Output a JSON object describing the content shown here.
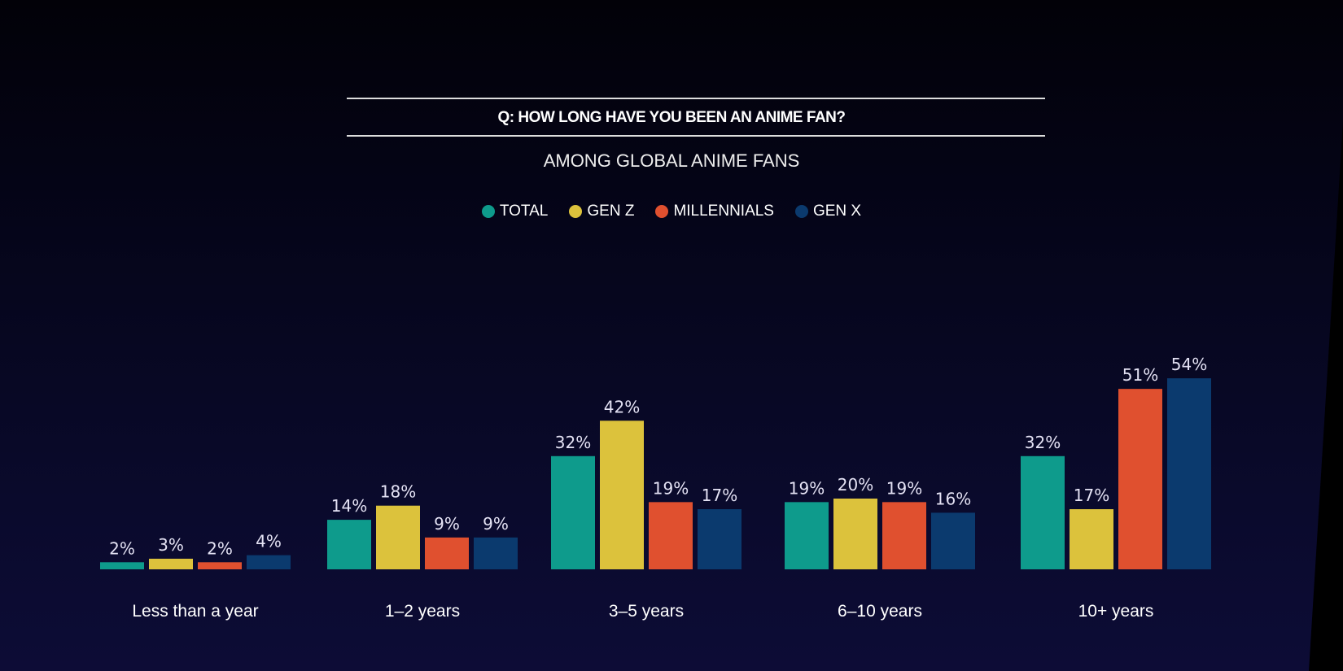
{
  "header": {
    "question": "Q: HOW LONG HAVE YOU BEEN AN ANIME FAN?",
    "subtitle": "AMONG GLOBAL ANIME FANS"
  },
  "chart_data": {
    "type": "bar",
    "title": "Q: HOW LONG HAVE YOU BEEN AN ANIME FAN?",
    "subtitle": "AMONG GLOBAL ANIME FANS",
    "categories": [
      "Less than a year",
      "1–2 years",
      "3–5 years",
      "6–10 years",
      "10+ years"
    ],
    "series": [
      {
        "name": "TOTAL",
        "color": "#0e9b8c",
        "values": [
          2,
          14,
          32,
          19,
          32
        ]
      },
      {
        "name": "GEN Z",
        "color": "#dcc23c",
        "values": [
          3,
          18,
          42,
          20,
          17
        ]
      },
      {
        "name": "MILLENNIALS",
        "color": "#e0502f",
        "values": [
          2,
          9,
          19,
          19,
          51
        ]
      },
      {
        "name": "GEN X",
        "color": "#0b3a6e",
        "values": [
          4,
          9,
          17,
          16,
          54
        ]
      }
    ],
    "value_suffix": "%",
    "ylim": [
      0,
      60
    ],
    "legend": "top-center",
    "grid": false
  }
}
